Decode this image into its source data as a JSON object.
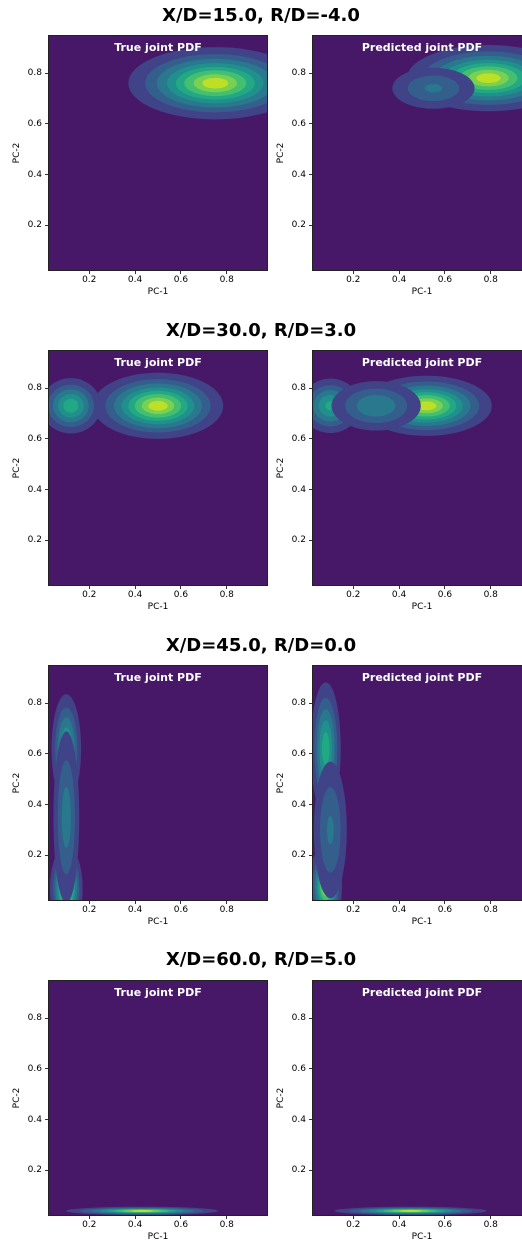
{
  "chart_data": [
    {
      "type": "contour",
      "title": "X/D=15.0, R/D=-4.0",
      "panels": [
        {
          "title": "True joint PDF",
          "xlabel": "PC-1",
          "ylabel": "PC-2",
          "peaks": [
            {
              "x": 0.75,
              "y": 0.76,
              "sx": 0.16,
              "sy": 0.06,
              "w": 1.0
            }
          ]
        },
        {
          "title": "Predicted joint PDF",
          "xlabel": "PC-1",
          "ylabel": "PC-2",
          "peaks": [
            {
              "x": 0.79,
              "y": 0.78,
              "sx": 0.15,
              "sy": 0.055,
              "w": 1.0
            },
            {
              "x": 0.55,
              "y": 0.74,
              "sx": 0.1,
              "sy": 0.045,
              "w": 0.3
            }
          ]
        }
      ]
    },
    {
      "type": "contour",
      "title": "X/D=30.0, R/D=3.0",
      "panels": [
        {
          "title": "True joint PDF",
          "xlabel": "PC-1",
          "ylabel": "PC-2",
          "peaks": [
            {
              "x": 0.5,
              "y": 0.73,
              "sx": 0.12,
              "sy": 0.055,
              "w": 1.0
            },
            {
              "x": 0.12,
              "y": 0.73,
              "sx": 0.06,
              "sy": 0.05,
              "w": 0.65
            }
          ]
        },
        {
          "title": "Predicted joint PDF",
          "xlabel": "PC-1",
          "ylabel": "PC-2",
          "peaks": [
            {
              "x": 0.52,
              "y": 0.73,
              "sx": 0.12,
              "sy": 0.05,
              "w": 1.0
            },
            {
              "x": 0.1,
              "y": 0.73,
              "sx": 0.06,
              "sy": 0.05,
              "w": 0.6
            },
            {
              "x": 0.3,
              "y": 0.73,
              "sx": 0.1,
              "sy": 0.05,
              "w": 0.4
            }
          ]
        }
      ]
    },
    {
      "type": "contour",
      "title": "X/D=45.0, R/D=0.0",
      "panels": [
        {
          "title": "True joint PDF",
          "xlabel": "PC-1",
          "ylabel": "PC-2",
          "peaks": [
            {
              "x": 0.1,
              "y": 0.07,
              "sx": 0.03,
              "sy": 0.07,
              "w": 1.0
            },
            {
              "x": 0.1,
              "y": 0.62,
              "sx": 0.03,
              "sy": 0.1,
              "w": 0.6
            },
            {
              "x": 0.1,
              "y": 0.35,
              "sx": 0.03,
              "sy": 0.18,
              "w": 0.35
            }
          ]
        },
        {
          "title": "Predicted joint PDF",
          "xlabel": "PC-1",
          "ylabel": "PC-2",
          "peaks": [
            {
              "x": 0.08,
              "y": 0.08,
              "sx": 0.03,
              "sy": 0.07,
              "w": 1.0
            },
            {
              "x": 0.08,
              "y": 0.62,
              "sx": 0.03,
              "sy": 0.12,
              "w": 0.65
            },
            {
              "x": 0.1,
              "y": 0.3,
              "sx": 0.04,
              "sy": 0.15,
              "w": 0.3
            }
          ]
        }
      ]
    },
    {
      "type": "contour",
      "title": "X/D=60.0, R/D=5.0",
      "panels": [
        {
          "title": "True joint PDF",
          "xlabel": "PC-1",
          "ylabel": "PC-2",
          "peaks": [
            {
              "x": 0.43,
              "y": 0.04,
              "sx": 0.14,
              "sy": 0.007,
              "w": 1.0
            }
          ]
        },
        {
          "title": "Predicted joint PDF",
          "xlabel": "PC-1",
          "ylabel": "PC-2",
          "peaks": [
            {
              "x": 0.45,
              "y": 0.04,
              "sx": 0.14,
              "sy": 0.007,
              "w": 1.0
            }
          ]
        }
      ]
    }
  ],
  "axis_ticks": {
    "x": [
      "0.2",
      "0.4",
      "0.6",
      "0.8"
    ],
    "y": [
      "0.2",
      "0.4",
      "0.6",
      "0.8"
    ],
    "x_values": [
      0.2,
      0.4,
      0.6,
      0.8
    ],
    "y_values": [
      0.2,
      0.4,
      0.6,
      0.8
    ],
    "xlim": [
      0.02,
      0.98
    ],
    "ylim": [
      0.02,
      0.95
    ]
  },
  "colormap": [
    "#440154",
    "#482374",
    "#404387",
    "#345f8d",
    "#29788e",
    "#20908c",
    "#22a884",
    "#44bf70",
    "#7ad151",
    "#bddf26",
    "#fde725"
  ],
  "background_color": "#481868"
}
